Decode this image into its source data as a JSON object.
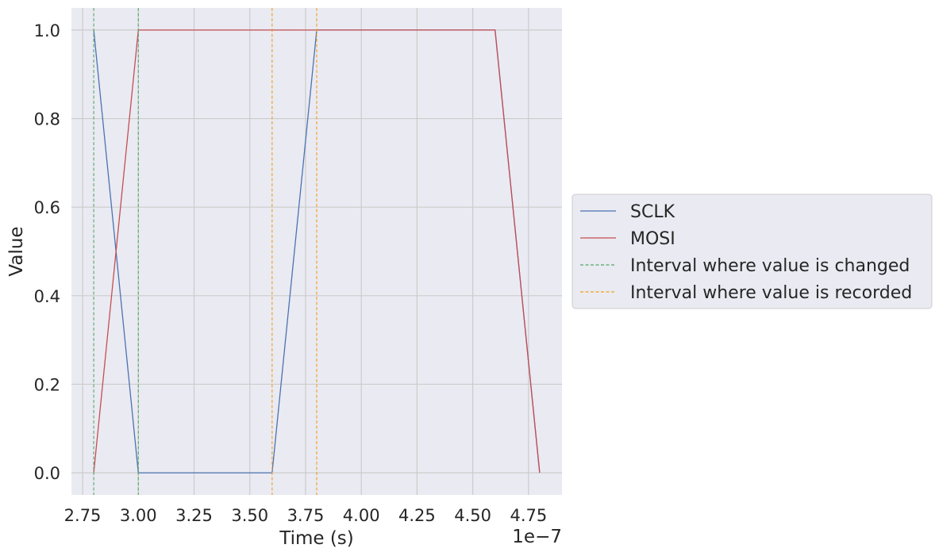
{
  "chart_data": {
    "type": "line",
    "title": "",
    "xlabel": "Time (s)",
    "ylabel": "Value",
    "x_offset_label": "1e−7",
    "xlim": [
      2.7,
      4.9
    ],
    "ylim": [
      -0.05,
      1.05
    ],
    "x_ticks": [
      2.75,
      3.0,
      3.25,
      3.5,
      3.75,
      4.0,
      4.25,
      4.5,
      4.75
    ],
    "x_tick_labels": [
      "2.75",
      "3.00",
      "3.25",
      "3.50",
      "3.75",
      "4.00",
      "4.25",
      "4.50",
      "4.75"
    ],
    "y_ticks": [
      0.0,
      0.2,
      0.4,
      0.6,
      0.8,
      1.0
    ],
    "y_tick_labels": [
      "0.0",
      "0.2",
      "0.4",
      "0.6",
      "0.8",
      "1.0"
    ],
    "grid": true,
    "legend_position": "center-right outside",
    "series": [
      {
        "name": "SCLK",
        "color": "#4c72b0",
        "x": [
          2.8,
          3.0,
          3.6,
          3.8,
          4.6,
          4.8
        ],
        "y": [
          1,
          0,
          0,
          1,
          1,
          0
        ]
      },
      {
        "name": "MOSI",
        "color": "#c44e52",
        "x": [
          2.8,
          3.0,
          4.6,
          4.8
        ],
        "y": [
          0,
          1,
          1,
          0
        ]
      }
    ],
    "vertical_lines": [
      {
        "name": "Interval where value is changed",
        "color": "#55a868",
        "x": [
          2.8,
          3.0
        ]
      },
      {
        "name": "Interval where value is recorded",
        "color": "#f0a020",
        "x": [
          3.6,
          3.8
        ]
      }
    ]
  }
}
